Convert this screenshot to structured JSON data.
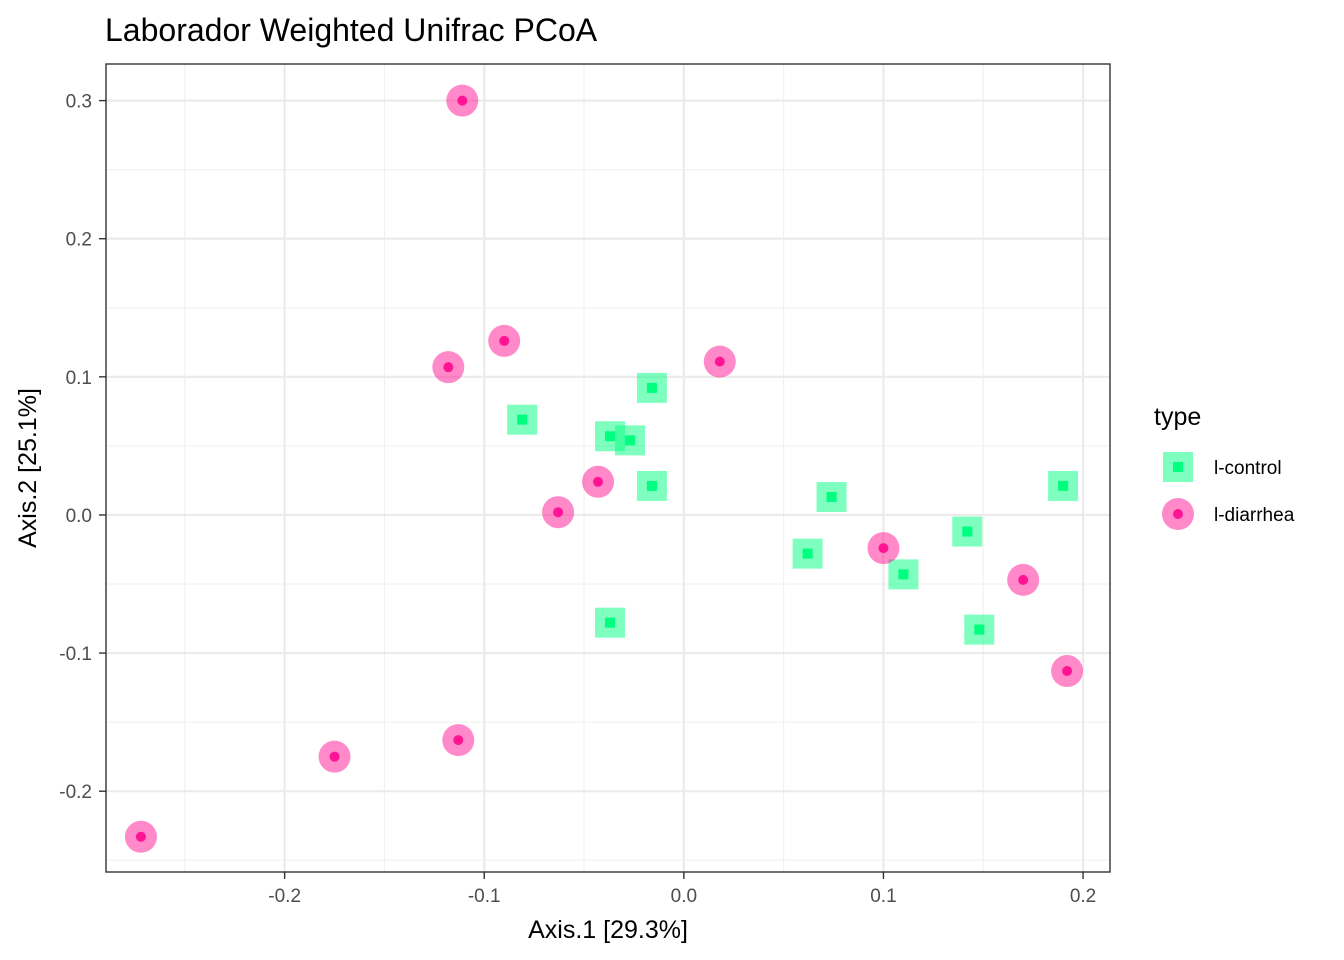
{
  "chart_data": {
    "type": "scatter",
    "title": "Laborador Weighted Unifrac PCoA",
    "xlabel": "Axis.1   [29.3%]",
    "ylabel": "Axis.2   [25.1%]",
    "xlim": [
      -0.2895,
      0.2135
    ],
    "ylim": [
      -0.2585,
      0.3265
    ],
    "x_ticks": [
      -0.2,
      -0.1,
      0.0,
      0.1,
      0.2
    ],
    "x_tick_labels": [
      "-0.2",
      "-0.1",
      "0.0",
      "0.1",
      "0.2"
    ],
    "y_ticks": [
      -0.2,
      -0.1,
      0.0,
      0.1,
      0.2,
      0.3
    ],
    "y_tick_labels": [
      "-0.2",
      "-0.1",
      "0.0",
      "0.1",
      "0.2",
      "0.3"
    ],
    "grid": true,
    "legend_title": "type",
    "legend_position": "right",
    "series": [
      {
        "name": "l-control",
        "marker": "square",
        "color": "#00ff7f",
        "x": [
          -0.081,
          -0.037,
          -0.027,
          -0.016,
          -0.016,
          -0.037,
          0.062,
          0.074,
          0.11,
          0.142,
          0.148,
          0.19
        ],
        "y": [
          0.069,
          0.057,
          0.054,
          0.092,
          0.021,
          -0.078,
          -0.028,
          0.013,
          -0.043,
          -0.012,
          -0.083,
          0.021
        ]
      },
      {
        "name": "l-diarrhea",
        "marker": "circle",
        "color": "#ff1493",
        "x": [
          -0.111,
          -0.09,
          -0.118,
          0.018,
          -0.043,
          -0.063,
          0.1,
          0.17,
          0.192,
          -0.113,
          -0.175,
          -0.272
        ],
        "y": [
          0.3,
          0.126,
          0.107,
          0.111,
          0.024,
          0.002,
          -0.024,
          -0.047,
          -0.113,
          -0.163,
          -0.175,
          -0.233
        ]
      }
    ]
  }
}
